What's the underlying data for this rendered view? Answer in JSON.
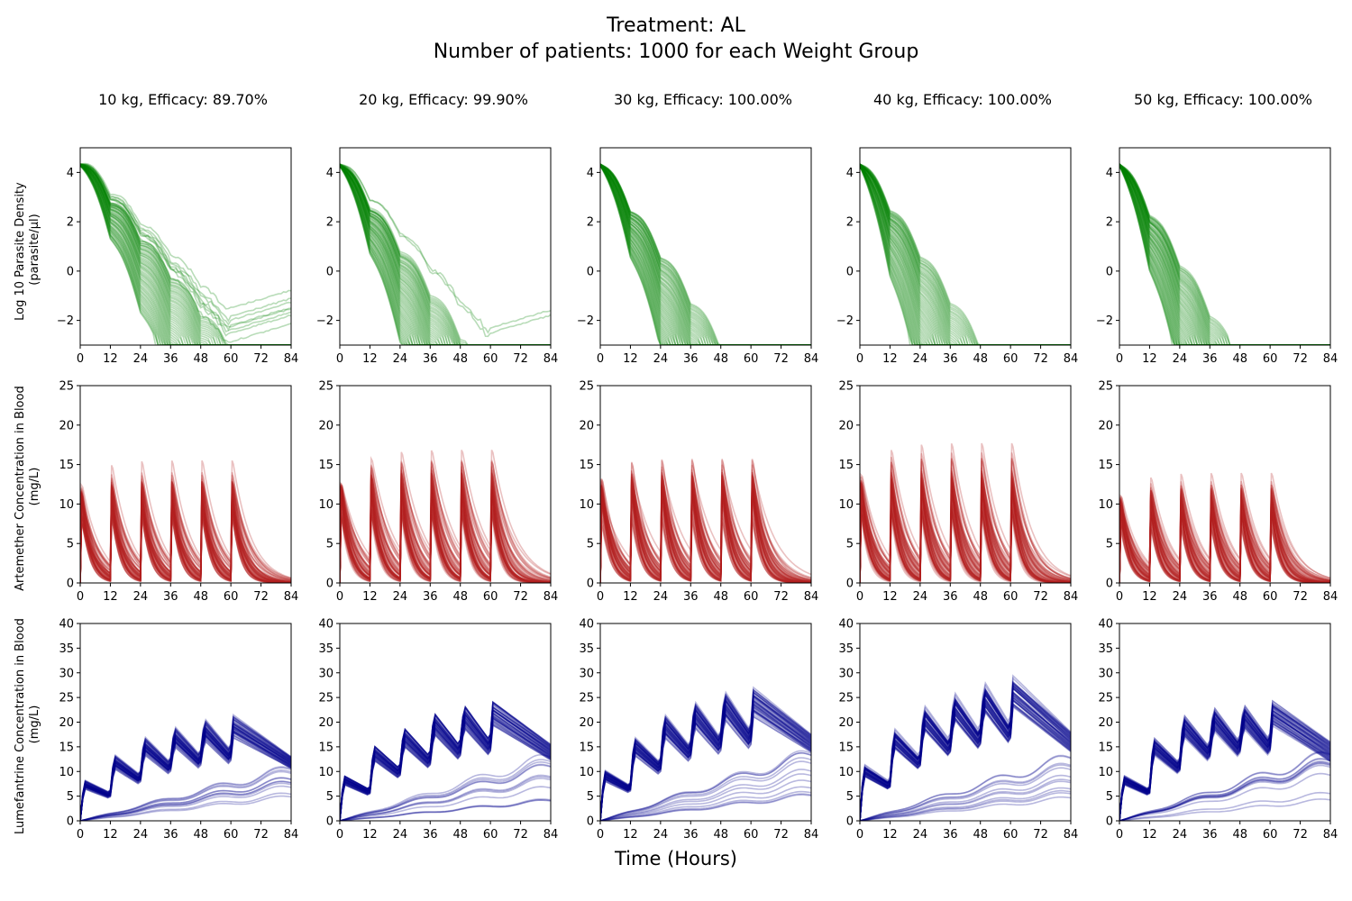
{
  "figure": {
    "title_line1": "Treatment: AL",
    "title_line2": "Number of patients: 1000 for each Weight Group",
    "xlabel": "Time (Hours)",
    "row_labels": [
      [
        "Log 10 Parasite Density",
        "(parasite/µl)"
      ],
      [
        "Artemether Concentration in Blood",
        "(mg/L)"
      ],
      [
        "Lumefantrine Concentration in Blood",
        "(mg/L)"
      ]
    ],
    "column_titles": [
      "10 kg, Efficacy: 89.70%",
      "20 kg, Efficacy: 99.90%",
      "30 kg, Efficacy: 100.00%",
      "40 kg, Efficacy: 100.00%",
      "50 kg, Efficacy: 100.00%"
    ],
    "colors": {
      "parasite": "#008000",
      "artemether": "#b22222",
      "lumefantrine": "#00008b"
    }
  },
  "chart_data": [
    {
      "type": "line",
      "row": "parasite",
      "ylabel": "Log 10 Parasite Density (parasite/µl)",
      "xlabel": "Time (Hours)",
      "xlim": [
        0,
        84
      ],
      "ylim": [
        -3,
        5
      ],
      "xticks": [
        0,
        12,
        24,
        36,
        48,
        60,
        72,
        84
      ],
      "yticks": [
        -2,
        0,
        2,
        4
      ],
      "ytick_labels": [
        "−2",
        "0",
        "2",
        "4"
      ],
      "panels": [
        {
          "title": "10 kg, Efficacy: 89.70%",
          "weight_kg": 10,
          "efficacy_pct": 89.7,
          "start": 4.3,
          "clear_time_range_h": [
            30,
            64
          ],
          "uncleared_end_range": [
            -2.9,
            -1.0
          ]
        },
        {
          "title": "20 kg, Efficacy: 99.90%",
          "weight_kg": 20,
          "efficacy_pct": 99.9,
          "start": 4.3,
          "clear_time_range_h": [
            25,
            52
          ],
          "uncleared_end_range": [
            -2.6,
            -2.3
          ]
        },
        {
          "title": "30 kg, Efficacy: 100.00%",
          "weight_kg": 30,
          "efficacy_pct": 100.0,
          "start": 4.3,
          "clear_time_range_h": [
            24,
            48
          ]
        },
        {
          "title": "40 kg, Efficacy: 100.00%",
          "weight_kg": 40,
          "efficacy_pct": 100.0,
          "start": 4.3,
          "clear_time_range_h": [
            20,
            48
          ]
        },
        {
          "title": "50 kg, Efficacy: 100.00%",
          "weight_kg": 50,
          "efficacy_pct": 100.0,
          "start": 4.3,
          "clear_time_range_h": [
            21,
            44
          ]
        }
      ]
    },
    {
      "type": "line",
      "row": "artemether",
      "ylabel": "Artemether Concentration in Blood (mg/L)",
      "xlabel": "Time (Hours)",
      "xlim": [
        0,
        84
      ],
      "ylim": [
        0,
        25
      ],
      "xticks": [
        0,
        12,
        24,
        36,
        48,
        60,
        72,
        84
      ],
      "yticks": [
        0,
        5,
        10,
        15,
        20,
        25
      ],
      "dose_times_h": [
        0,
        12,
        24,
        36,
        48,
        60
      ],
      "panels": [
        {
          "weight_kg": 10,
          "peak": 14.2
        },
        {
          "weight_kg": 20,
          "peak": 14.8
        },
        {
          "weight_kg": 30,
          "peak": 15.2
        },
        {
          "weight_kg": 40,
          "peak": 15.5
        },
        {
          "weight_kg": 50,
          "peak": 12.8
        }
      ]
    },
    {
      "type": "line",
      "row": "lumefantrine",
      "ylabel": "Lumefantrine Concentration in Blood (mg/L)",
      "xlabel": "Time (Hours)",
      "xlim": [
        0,
        84
      ],
      "ylim": [
        0,
        40
      ],
      "xticks": [
        0,
        12,
        24,
        36,
        48,
        60,
        72,
        84
      ],
      "yticks": [
        0,
        5,
        10,
        15,
        20,
        25,
        30,
        35,
        40
      ],
      "dose_times_h": [
        0,
        12,
        24,
        36,
        48,
        60
      ],
      "panels": [
        {
          "weight_kg": 10,
          "peaks_upper": [
            8,
            13,
            16.5,
            18.5,
            20,
            21
          ],
          "end_upper": 13,
          "end_lower": 10
        },
        {
          "weight_kg": 20,
          "peaks_upper": [
            9,
            15,
            18.5,
            21.5,
            23,
            24
          ],
          "end_upper": 15.5,
          "end_lower": 11.5
        },
        {
          "weight_kg": 30,
          "peaks_upper": [
            10,
            16.5,
            21,
            23.5,
            25.5,
            26.5
          ],
          "end_upper": 17.5,
          "end_lower": 13
        },
        {
          "weight_kg": 40,
          "peaks_upper": [
            11,
            18,
            22.5,
            25,
            27,
            28.5
          ],
          "end_upper": 18,
          "end_lower": 13
        },
        {
          "weight_kg": 50,
          "peaks_upper": [
            9,
            16.5,
            21,
            22.5,
            23,
            24
          ],
          "end_upper": 16,
          "end_lower": 11
        }
      ]
    }
  ]
}
